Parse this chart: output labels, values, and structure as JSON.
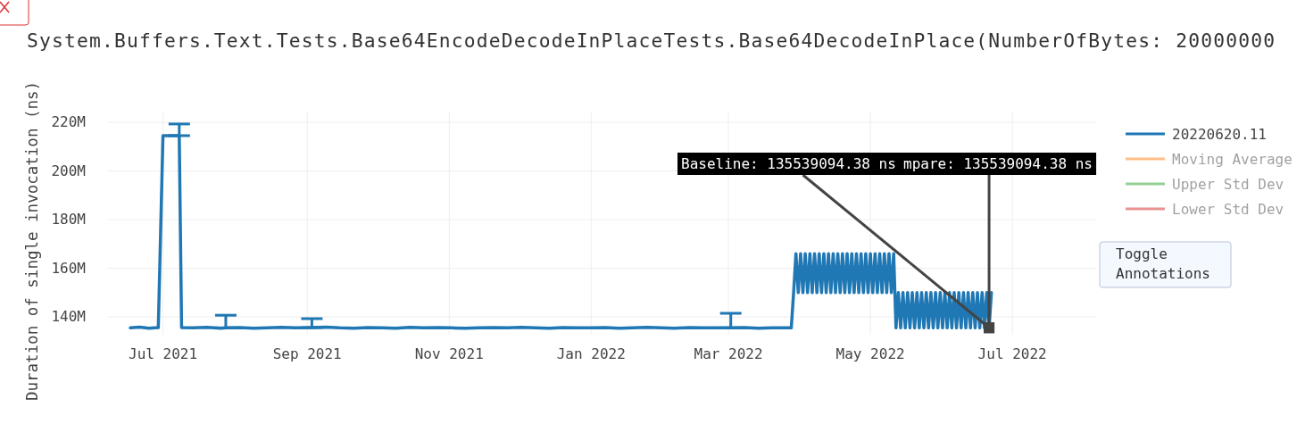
{
  "chart_data": {
    "type": "line",
    "title": "System.Buffers.Text.Tests.Base64EncodeDecodeInPlaceTests.Base64DecodeInPlace(NumberOfBytes: 20000000",
    "ylabel": "Duration of single invocation (ns)",
    "xlim": [
      "2021-06-07",
      "2022-08-06"
    ],
    "xticks": [
      {
        "value": "2021-07-01",
        "label": "Jul 2021"
      },
      {
        "value": "2021-09-01",
        "label": "Sep 2021"
      },
      {
        "value": "2021-11-01",
        "label": "Nov 2021"
      },
      {
        "value": "2022-01-01",
        "label": "Jan 2022"
      },
      {
        "value": "2022-03-01",
        "label": "Mar 2022"
      },
      {
        "value": "2022-05-01",
        "label": "May 2022"
      },
      {
        "value": "2022-07-01",
        "label": "Jul 2022"
      }
    ],
    "ylim": [
      132700000,
      224400000
    ],
    "yticks": [
      {
        "value": 140000000,
        "label": "140M"
      },
      {
        "value": 160000000,
        "label": "160M"
      },
      {
        "value": 180000000,
        "label": "180M"
      },
      {
        "value": 200000000,
        "label": "200M"
      },
      {
        "value": 220000000,
        "label": "220M"
      }
    ],
    "grid": true,
    "legend": "top right",
    "line_style": "solid",
    "series": [
      {
        "name": "20220620.11",
        "color": "#1f77b4",
        "x": [
          "2021-06-17",
          "2021-06-21",
          "2021-06-25",
          "2021-06-29",
          "2021-07-01",
          "2021-07-05",
          "2021-07-08",
          "2021-07-09",
          "2021-07-14",
          "2021-07-20",
          "2021-07-26",
          "2021-07-28",
          "2021-08-03",
          "2021-08-09",
          "2021-08-15",
          "2021-08-21",
          "2021-08-27",
          "2021-09-03",
          "2021-09-09",
          "2021-09-15",
          "2021-09-21",
          "2021-09-27",
          "2021-10-03",
          "2021-10-09",
          "2021-10-15",
          "2021-10-21",
          "2021-10-27",
          "2021-11-02",
          "2021-11-08",
          "2021-11-14",
          "2021-11-20",
          "2021-11-26",
          "2021-12-02",
          "2021-12-08",
          "2021-12-14",
          "2021-12-20",
          "2021-12-26",
          "2022-01-01",
          "2022-01-07",
          "2022-01-13",
          "2022-01-19",
          "2022-01-25",
          "2022-01-31",
          "2022-02-06",
          "2022-02-12",
          "2022-02-18",
          "2022-02-24",
          "2022-03-02",
          "2022-03-08",
          "2022-03-14",
          "2022-03-20",
          "2022-03-28",
          "2022-03-29",
          "2022-03-30",
          "2022-03-31",
          "2022-04-01",
          "2022-04-02",
          "2022-04-03",
          "2022-04-04",
          "2022-04-05",
          "2022-04-06",
          "2022-04-07",
          "2022-04-08",
          "2022-04-09",
          "2022-04-10",
          "2022-04-11",
          "2022-04-12",
          "2022-04-13",
          "2022-04-14",
          "2022-04-15",
          "2022-04-16",
          "2022-04-17",
          "2022-04-18",
          "2022-04-19",
          "2022-04-20",
          "2022-04-21",
          "2022-04-22",
          "2022-04-23",
          "2022-04-24",
          "2022-04-25",
          "2022-04-26",
          "2022-04-27",
          "2022-04-28",
          "2022-04-29",
          "2022-04-30",
          "2022-05-01",
          "2022-05-02",
          "2022-05-03",
          "2022-05-04",
          "2022-05-05",
          "2022-05-06",
          "2022-05-07",
          "2022-05-08",
          "2022-05-09",
          "2022-05-10",
          "2022-05-11",
          "2022-05-12",
          "2022-05-13",
          "2022-05-14",
          "2022-05-15",
          "2022-05-16",
          "2022-05-17",
          "2022-05-18",
          "2022-05-19",
          "2022-05-20",
          "2022-05-21",
          "2022-05-22",
          "2022-05-23",
          "2022-05-24",
          "2022-05-25",
          "2022-05-26",
          "2022-05-27",
          "2022-05-28",
          "2022-05-29",
          "2022-05-30",
          "2022-05-31",
          "2022-06-01",
          "2022-06-02",
          "2022-06-03",
          "2022-06-04",
          "2022-06-05",
          "2022-06-06",
          "2022-06-07",
          "2022-06-08",
          "2022-06-09",
          "2022-06-10",
          "2022-06-11",
          "2022-06-12",
          "2022-06-13",
          "2022-06-14",
          "2022-06-15",
          "2022-06-16",
          "2022-06-17",
          "2022-06-18",
          "2022-06-19",
          "2022-06-20",
          "2022-06-21",
          "2022-06-22"
        ],
        "values": [
          135500000,
          135800000,
          135400000,
          135600000,
          214500000,
          214500000,
          214500000,
          135600000,
          135500000,
          135700000,
          135400000,
          135500000,
          135600000,
          135400000,
          135500000,
          135700000,
          135500000,
          135600000,
          135800000,
          135500000,
          135400000,
          135600000,
          135500000,
          135400000,
          135700000,
          135500000,
          135600000,
          135500000,
          135400000,
          135500000,
          135600000,
          135500000,
          135700000,
          135500000,
          135400000,
          135600000,
          135500000,
          135500000,
          135600000,
          135400000,
          135500000,
          135700000,
          135500000,
          135400000,
          135600000,
          135500000,
          135500000,
          135500000,
          135600000,
          135400000,
          135500000,
          135500000,
          150000000,
          166000000,
          150000000,
          166000000,
          150000000,
          166000000,
          150000000,
          166000000,
          150000000,
          166000000,
          150000000,
          166000000,
          150000000,
          166000000,
          150000000,
          166000000,
          150000000,
          166000000,
          150000000,
          166000000,
          150000000,
          166000000,
          150000000,
          166000000,
          150000000,
          166000000,
          150000000,
          166000000,
          150000000,
          166000000,
          150000000,
          166000000,
          150000000,
          166000000,
          150000000,
          166000000,
          150000000,
          166000000,
          150000000,
          166000000,
          150000000,
          166000000,
          150000000,
          166000000,
          135500000,
          150000000,
          135500000,
          150000000,
          135500000,
          150000000,
          135500000,
          150000000,
          135500000,
          150000000,
          135500000,
          150000000,
          135500000,
          150000000,
          135500000,
          150000000,
          135500000,
          150000000,
          135500000,
          150000000,
          135500000,
          150000000,
          135500000,
          150000000,
          135500000,
          150000000,
          135500000,
          150000000,
          135500000,
          150000000,
          135500000,
          150000000,
          135500000,
          150000000,
          135500000,
          150000000,
          135500000,
          150000000,
          135500000,
          150000000,
          135500000,
          150000000
        ],
        "errors": [
          null,
          null,
          null,
          null,
          null,
          null,
          [
            214500000,
            219300000
          ],
          null,
          null,
          null,
          null,
          [
            135500000,
            140700000
          ],
          null,
          null,
          null,
          null,
          null,
          [
            135600000,
            139300000
          ],
          null,
          null,
          null,
          null,
          null,
          null,
          null,
          null,
          null,
          null,
          null,
          null,
          null,
          null,
          null,
          null,
          null,
          null,
          null,
          null,
          null,
          null,
          null,
          null,
          null,
          null,
          null,
          null,
          null,
          [
            135500000,
            141500000
          ],
          null,
          null,
          null,
          null,
          null,
          null,
          null,
          null,
          null,
          null,
          null,
          null,
          null,
          null,
          null,
          null,
          null,
          null,
          null,
          null,
          null,
          null,
          null,
          null,
          null,
          null,
          null,
          null,
          null,
          null,
          null,
          null,
          null,
          null,
          null,
          null,
          null,
          null,
          null,
          null,
          null,
          null,
          null,
          null,
          null,
          null,
          null,
          null,
          null,
          null,
          null,
          null,
          null,
          null,
          null,
          null,
          null,
          null,
          null,
          null,
          null,
          null,
          null,
          null,
          null,
          null,
          null,
          null,
          null,
          null,
          null,
          null,
          null,
          null,
          null,
          null,
          null,
          null,
          null,
          null,
          null,
          null,
          null,
          null,
          null,
          null,
          null,
          null,
          null,
          null
        ]
      },
      {
        "name": "Moving Average",
        "color": "#ff7f0e"
      },
      {
        "name": "Upper Std Dev",
        "color": "#2ca02c"
      },
      {
        "name": "Lower Std Dev",
        "color": "#d62728"
      }
    ],
    "annotations": [
      {
        "text": "Baseline: 135539094.38 ns",
        "x": "2022-06-21",
        "y": 135539094.38
      },
      {
        "text": "mpare: 135539094.38 ns",
        "x": "2022-06-21",
        "y": 135539094.38
      },
      "Toggle Annotations"
    ]
  }
}
